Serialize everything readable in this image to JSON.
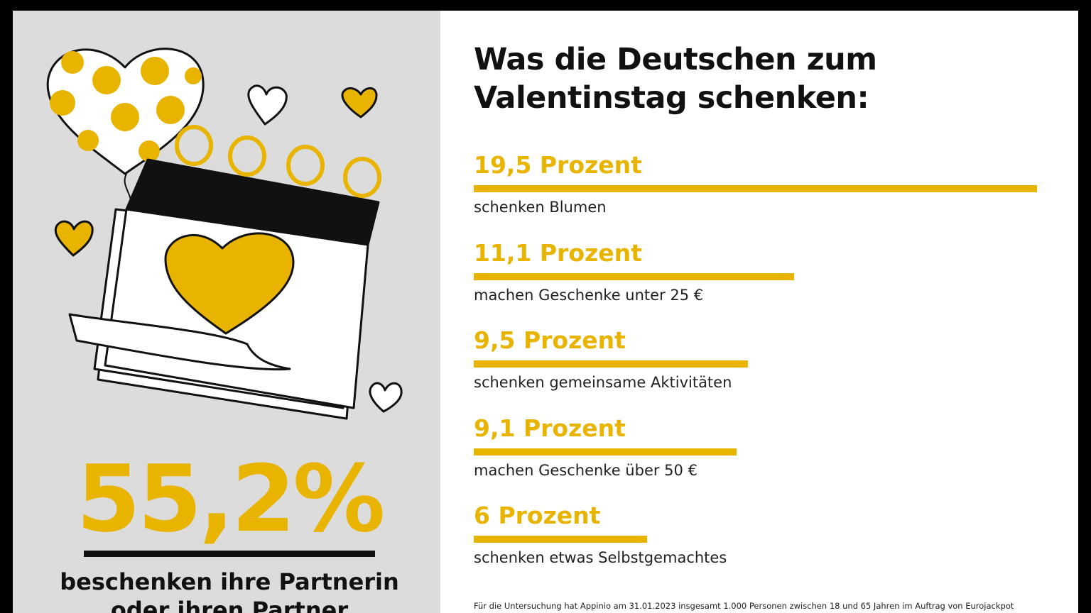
{
  "chart_data": {
    "type": "bar",
    "title": [
      "Was die Deutschen zum",
      "Valentinstag schenken:"
    ],
    "categories": [
      "schenken Blumen",
      "machen Geschenke unter 25 €",
      "schenken gemeinsame Aktivitäten",
      "machen Geschenke über 50 €",
      "schenken etwas Selbstgemachtes"
    ],
    "values": [
      19.5,
      11.1,
      9.5,
      9.1,
      6
    ],
    "value_labels": [
      "19,5 Prozent",
      "11,1 Prozent",
      "9,5 Prozent",
      "9,1 Prozent",
      "6 Prozent"
    ],
    "color": "#e8b400",
    "footnote": "Für die Untersuchung hat Appinio am 31.01.2023 insgesamt 1.000 Personen zwischen 18 und 65 Jahren im Auftrag von Eurojackpot"
  },
  "highlight": {
    "value": 55.2,
    "label": "55,2%",
    "text": [
      "beschenken ihre Partnerin",
      "oder ihren Partner"
    ]
  }
}
